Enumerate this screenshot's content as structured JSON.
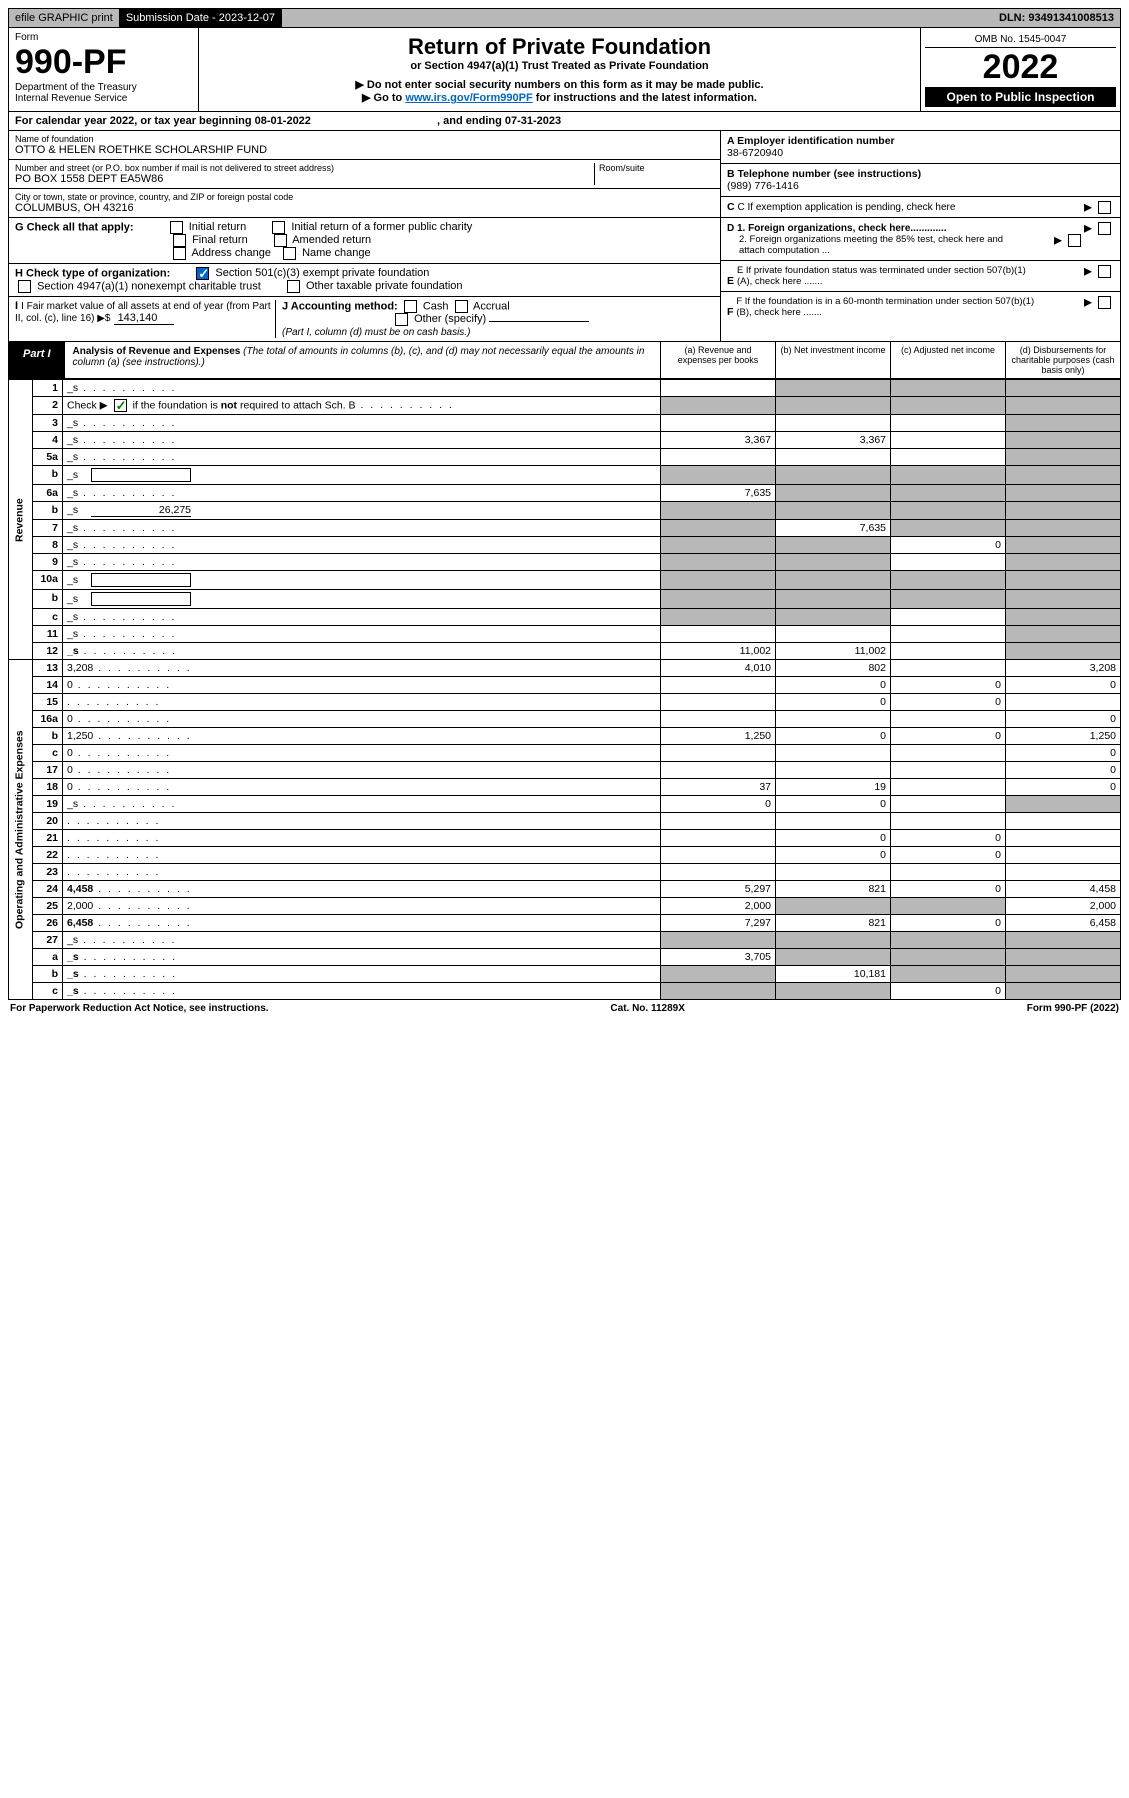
{
  "topbar": {
    "efile": "efile GRAPHIC print",
    "sub_label": "Submission Date - 2023-12-07",
    "dln": "DLN: 93491341008513"
  },
  "header": {
    "form_word": "Form",
    "form_num": "990-PF",
    "dept": "Department of the Treasury",
    "irs": "Internal Revenue Service",
    "title": "Return of Private Foundation",
    "subtitle": "or Section 4947(a)(1) Trust Treated as Private Foundation",
    "warn1": "▶ Do not enter social security numbers on this form as it may be made public.",
    "warn2_pre": "▶ Go to ",
    "warn2_link": "www.irs.gov/Form990PF",
    "warn2_post": " for instructions and the latest information.",
    "omb": "OMB No. 1545-0047",
    "year": "2022",
    "open": "Open to Public Inspection"
  },
  "cal": {
    "text_a": "For calendar year 2022, or tax year beginning 08-01-2022",
    "text_b": ", and ending 07-31-2023"
  },
  "info": {
    "name_lbl": "Name of foundation",
    "name": "OTTO & HELEN ROETHKE SCHOLARSHIP FUND",
    "addr_lbl": "Number and street (or P.O. box number if mail is not delivered to street address)",
    "addr": "PO BOX 1558 DEPT EA5W86",
    "room_lbl": "Room/suite",
    "city_lbl": "City or town, state or province, country, and ZIP or foreign postal code",
    "city": "COLUMBUS, OH  43216",
    "ein_lbl": "A Employer identification number",
    "ein": "38-6720940",
    "tel_lbl": "B Telephone number (see instructions)",
    "tel": "(989) 776-1416",
    "c_lbl": "C If exemption application is pending, check here",
    "d1_lbl": "D 1. Foreign organizations, check here.............",
    "d2_lbl": "2. Foreign organizations meeting the 85% test, check here and attach computation ...",
    "e_lbl": "E  If private foundation status was terminated under section 507(b)(1)(A), check here .......",
    "f_lbl": "F  If the foundation is in a 60-month termination under section 507(b)(1)(B), check here .......",
    "g_lbl": "G Check all that apply:",
    "g_opts": [
      "Initial return",
      "Initial return of a former public charity",
      "Final return",
      "Amended return",
      "Address change",
      "Name change"
    ],
    "h_lbl": "H Check type of organization:",
    "h_opt1": "Section 501(c)(3) exempt private foundation",
    "h_opt2": "Section 4947(a)(1) nonexempt charitable trust",
    "h_opt3": "Other taxable private foundation",
    "i_lbl": "I Fair market value of all assets at end of year (from Part II, col. (c), line 16) ▶$",
    "i_val": "143,140",
    "j_lbl": "J Accounting method:",
    "j_cash": "Cash",
    "j_accrual": "Accrual",
    "j_other": "Other (specify)",
    "j_note": "(Part I, column (d) must be on cash basis.)"
  },
  "part1": {
    "tag": "Part I",
    "title": "Analysis of Revenue and Expenses",
    "note": " (The total of amounts in columns (b), (c), and (d) may not necessarily equal the amounts in column (a) (see instructions).)",
    "col_a": "(a)   Revenue and expenses per books",
    "col_b": "(b)   Net investment income",
    "col_c": "(c)   Adjusted net income",
    "col_d": "(d)   Disbursements for charitable purposes (cash basis only)"
  },
  "labels": {
    "revenue": "Revenue",
    "opex": "Operating and Administrative Expenses"
  },
  "rows": [
    {
      "n": "1",
      "d": "_s",
      "a": "",
      "b": "_s",
      "c": "_s"
    },
    {
      "n": "2",
      "d": "_s",
      "a": "_s",
      "b": "_s",
      "c": "_s",
      "schb": true
    },
    {
      "n": "3",
      "d": "_s",
      "a": "",
      "b": "",
      "c": ""
    },
    {
      "n": "4",
      "d": "_s",
      "a": "3,367",
      "b": "3,367",
      "c": ""
    },
    {
      "n": "5a",
      "d": "_s",
      "a": "",
      "b": "",
      "c": ""
    },
    {
      "n": "b",
      "d": "_s",
      "a": "_s",
      "b": "_s",
      "c": "_s",
      "inline": true
    },
    {
      "n": "6a",
      "d": "_s",
      "a": "7,635",
      "b": "_s",
      "c": "_s"
    },
    {
      "n": "b",
      "d": "_s",
      "a": "_s",
      "b": "_s",
      "c": "_s",
      "inline": true,
      "ival": "26,275"
    },
    {
      "n": "7",
      "d": "_s",
      "a": "_s",
      "b": "7,635",
      "c": "_s"
    },
    {
      "n": "8",
      "d": "_s",
      "a": "_s",
      "b": "_s",
      "c": "0"
    },
    {
      "n": "9",
      "d": "_s",
      "a": "_s",
      "b": "_s",
      "c": ""
    },
    {
      "n": "10a",
      "d": "_s",
      "a": "_s",
      "b": "_s",
      "c": "_s",
      "inline": true
    },
    {
      "n": "b",
      "d": "_s",
      "a": "_s",
      "b": "_s",
      "c": "_s",
      "inline": true
    },
    {
      "n": "c",
      "d": "_s",
      "a": "_s",
      "b": "_s",
      "c": ""
    },
    {
      "n": "11",
      "d": "_s",
      "a": "",
      "b": "",
      "c": ""
    },
    {
      "n": "12",
      "d": "_s",
      "a": "11,002",
      "b": "11,002",
      "c": "",
      "bold": true
    }
  ],
  "opex_rows": [
    {
      "n": "13",
      "d": "3,208",
      "a": "4,010",
      "b": "802",
      "c": ""
    },
    {
      "n": "14",
      "d": "0",
      "a": "",
      "b": "0",
      "c": "0"
    },
    {
      "n": "15",
      "d": "",
      "a": "",
      "b": "0",
      "c": "0"
    },
    {
      "n": "16a",
      "d": "0",
      "a": "",
      "b": "",
      "c": ""
    },
    {
      "n": "b",
      "d": "1,250",
      "a": "1,250",
      "b": "0",
      "c": "0"
    },
    {
      "n": "c",
      "d": "0",
      "a": "",
      "b": "",
      "c": ""
    },
    {
      "n": "17",
      "d": "0",
      "a": "",
      "b": "",
      "c": ""
    },
    {
      "n": "18",
      "d": "0",
      "a": "37",
      "b": "19",
      "c": ""
    },
    {
      "n": "19",
      "d": "_s",
      "a": "0",
      "b": "0",
      "c": ""
    },
    {
      "n": "20",
      "d": "",
      "a": "",
      "b": "",
      "c": ""
    },
    {
      "n": "21",
      "d": "",
      "a": "",
      "b": "0",
      "c": "0"
    },
    {
      "n": "22",
      "d": "",
      "a": "",
      "b": "0",
      "c": "0"
    },
    {
      "n": "23",
      "d": "",
      "a": "",
      "b": "",
      "c": ""
    },
    {
      "n": "24",
      "d": "4,458",
      "a": "5,297",
      "b": "821",
      "c": "0",
      "bold": true
    },
    {
      "n": "25",
      "d": "2,000",
      "a": "2,000",
      "b": "_s",
      "c": "_s"
    },
    {
      "n": "26",
      "d": "6,458",
      "a": "7,297",
      "b": "821",
      "c": "0",
      "bold": true
    },
    {
      "n": "27",
      "d": "_s",
      "a": "_s",
      "b": "_s",
      "c": "_s"
    },
    {
      "n": "a",
      "d": "_s",
      "a": "3,705",
      "b": "_s",
      "c": "_s",
      "bold": true
    },
    {
      "n": "b",
      "d": "_s",
      "a": "_s",
      "b": "10,181",
      "c": "_s",
      "bold": true
    },
    {
      "n": "c",
      "d": "_s",
      "a": "_s",
      "b": "_s",
      "c": "0",
      "bold": true
    }
  ],
  "footer": {
    "left": "For Paperwork Reduction Act Notice, see instructions.",
    "mid": "Cat. No. 11289X",
    "right": "Form 990-PF (2022)"
  },
  "colors": {
    "shade": "#b8b8b8",
    "link": "#0066cc"
  }
}
